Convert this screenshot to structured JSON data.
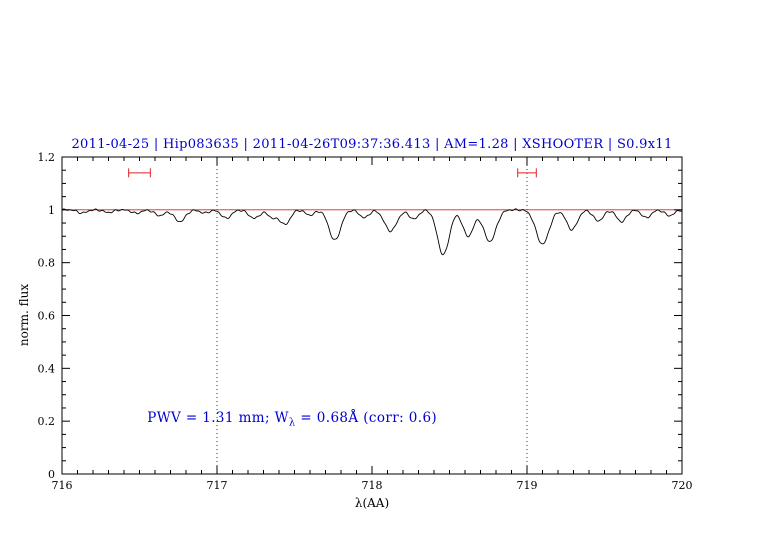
{
  "chart_data": {
    "type": "line",
    "title": "2011-04-25 | Hip083635 | 2011-04-26T09:37:36.413 | AM=1.28 | XSHOOTER | S0.9x11",
    "title_color": "#0000cd",
    "xlabel": "λ(AA)",
    "ylabel": "norm. flux",
    "xlim": [
      716,
      720
    ],
    "ylim": [
      0,
      1.2
    ],
    "grid": false,
    "x_ticks": {
      "values": [
        716,
        717,
        718,
        719,
        720
      ],
      "labels": [
        "716",
        "717",
        "718",
        "719",
        "720"
      ],
      "minor_step": 0.1
    },
    "y_ticks": {
      "values": [
        0,
        0.2,
        0.4,
        0.6,
        0.8,
        1,
        1.2
      ],
      "labels": [
        "0",
        "0.2",
        "0.4",
        "0.6",
        "0.8",
        "1",
        "1.2"
      ],
      "minor_step": 0.05
    },
    "continuum": {
      "y": 1.0,
      "color": "#dd2222"
    },
    "vlines": {
      "x": [
        717,
        719
      ],
      "style": "dotted",
      "color": "#000000"
    },
    "region_markers": {
      "color": "#dd2222",
      "y": 1.14,
      "ranges": [
        [
          716.43,
          716.57
        ],
        [
          718.94,
          719.06
        ]
      ]
    },
    "spectrum": {
      "color": "#000000",
      "model": "continuum-minus-gaussians",
      "sample_step": 0.004,
      "absorption_lines": [
        {
          "center": 716.13,
          "depth": 0.012,
          "sigma": 0.03
        },
        {
          "center": 716.3,
          "depth": 0.01,
          "sigma": 0.03
        },
        {
          "center": 716.48,
          "depth": 0.013,
          "sigma": 0.03
        },
        {
          "center": 716.63,
          "depth": 0.022,
          "sigma": 0.032
        },
        {
          "center": 716.76,
          "depth": 0.045,
          "sigma": 0.035
        },
        {
          "center": 716.92,
          "depth": 0.012,
          "sigma": 0.03
        },
        {
          "center": 717.06,
          "depth": 0.032,
          "sigma": 0.032
        },
        {
          "center": 717.24,
          "depth": 0.032,
          "sigma": 0.035
        },
        {
          "center": 717.36,
          "depth": 0.03,
          "sigma": 0.03
        },
        {
          "center": 717.44,
          "depth": 0.055,
          "sigma": 0.032
        },
        {
          "center": 717.6,
          "depth": 0.02,
          "sigma": 0.03
        },
        {
          "center": 717.76,
          "depth": 0.115,
          "sigma": 0.038
        },
        {
          "center": 717.95,
          "depth": 0.03,
          "sigma": 0.03
        },
        {
          "center": 718.12,
          "depth": 0.08,
          "sigma": 0.04
        },
        {
          "center": 718.27,
          "depth": 0.035,
          "sigma": 0.03
        },
        {
          "center": 718.46,
          "depth": 0.17,
          "sigma": 0.038
        },
        {
          "center": 718.62,
          "depth": 0.1,
          "sigma": 0.035
        },
        {
          "center": 718.76,
          "depth": 0.12,
          "sigma": 0.04
        },
        {
          "center": 719.1,
          "depth": 0.13,
          "sigma": 0.042
        },
        {
          "center": 719.29,
          "depth": 0.075,
          "sigma": 0.035
        },
        {
          "center": 719.46,
          "depth": 0.042,
          "sigma": 0.032
        },
        {
          "center": 719.61,
          "depth": 0.045,
          "sigma": 0.032
        },
        {
          "center": 719.77,
          "depth": 0.03,
          "sigma": 0.03
        },
        {
          "center": 719.92,
          "depth": 0.022,
          "sigma": 0.03
        }
      ]
    },
    "annotation": {
      "prefix": "PWV = 1.31 mm; W",
      "sub": "λ",
      "suffix": " = 0.68Å (corr: 0.6)",
      "x": 716.55,
      "y": 0.2,
      "color": "#0000cd"
    }
  }
}
